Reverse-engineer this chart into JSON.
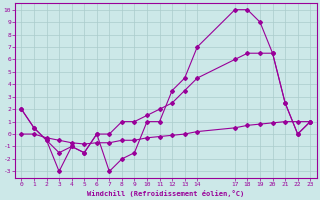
{
  "bg_color": "#cce8e8",
  "grid_color": "#aacccc",
  "line_color": "#990099",
  "xlabel": "Windchill (Refroidissement éolien,°C)",
  "xlim": [
    -0.5,
    23.5
  ],
  "ylim": [
    -3.5,
    10.5
  ],
  "xtick_positions": [
    0,
    1,
    2,
    3,
    4,
    5,
    6,
    7,
    8,
    9,
    10,
    11,
    12,
    13,
    14,
    17,
    18,
    19,
    20,
    21,
    22,
    23
  ],
  "xtick_labels": [
    "0",
    "1",
    "2",
    "3",
    "4",
    "5",
    "6",
    "7",
    "8",
    "9",
    "10",
    "11",
    "12",
    "13",
    "14",
    "17",
    "18",
    "19",
    "20",
    "21",
    "22",
    "23"
  ],
  "ytick_positions": [
    -3,
    -2,
    -1,
    0,
    1,
    2,
    3,
    4,
    5,
    6,
    7,
    8,
    9,
    10
  ],
  "series": [
    {
      "x": [
        0,
        1,
        2,
        3,
        4,
        5,
        6,
        7,
        8,
        9,
        10,
        11,
        12,
        13,
        14,
        17,
        18,
        19,
        20,
        21,
        22,
        23
      ],
      "y": [
        2,
        0.5,
        -0.5,
        -3,
        -1,
        -1.5,
        0,
        -3,
        -2,
        -1.5,
        1,
        1,
        3.5,
        4.5,
        7,
        10,
        10,
        9,
        6.5,
        2.5,
        0,
        1
      ]
    },
    {
      "x": [
        0,
        1,
        2,
        3,
        4,
        5,
        6,
        7,
        8,
        9,
        10,
        11,
        12,
        13,
        14,
        17,
        18,
        19,
        20,
        21,
        22,
        23
      ],
      "y": [
        2,
        0.5,
        -0.5,
        -1.5,
        -1,
        -1.5,
        0,
        0,
        1,
        1,
        1.5,
        2,
        2.5,
        3.5,
        4.5,
        6,
        6.5,
        6.5,
        6.5,
        2.5,
        0,
        1
      ]
    },
    {
      "x": [
        0,
        1,
        2,
        3,
        4,
        5,
        6,
        7,
        8,
        9,
        10,
        11,
        12,
        13,
        14,
        17,
        18,
        19,
        20,
        21,
        22,
        23
      ],
      "y": [
        0,
        0,
        -0.3,
        -0.5,
        -0.7,
        -0.8,
        -0.7,
        -0.7,
        -0.5,
        -0.5,
        -0.3,
        -0.2,
        -0.1,
        0,
        0.2,
        0.5,
        0.7,
        0.8,
        0.9,
        1.0,
        1.0,
        1.0
      ]
    }
  ]
}
